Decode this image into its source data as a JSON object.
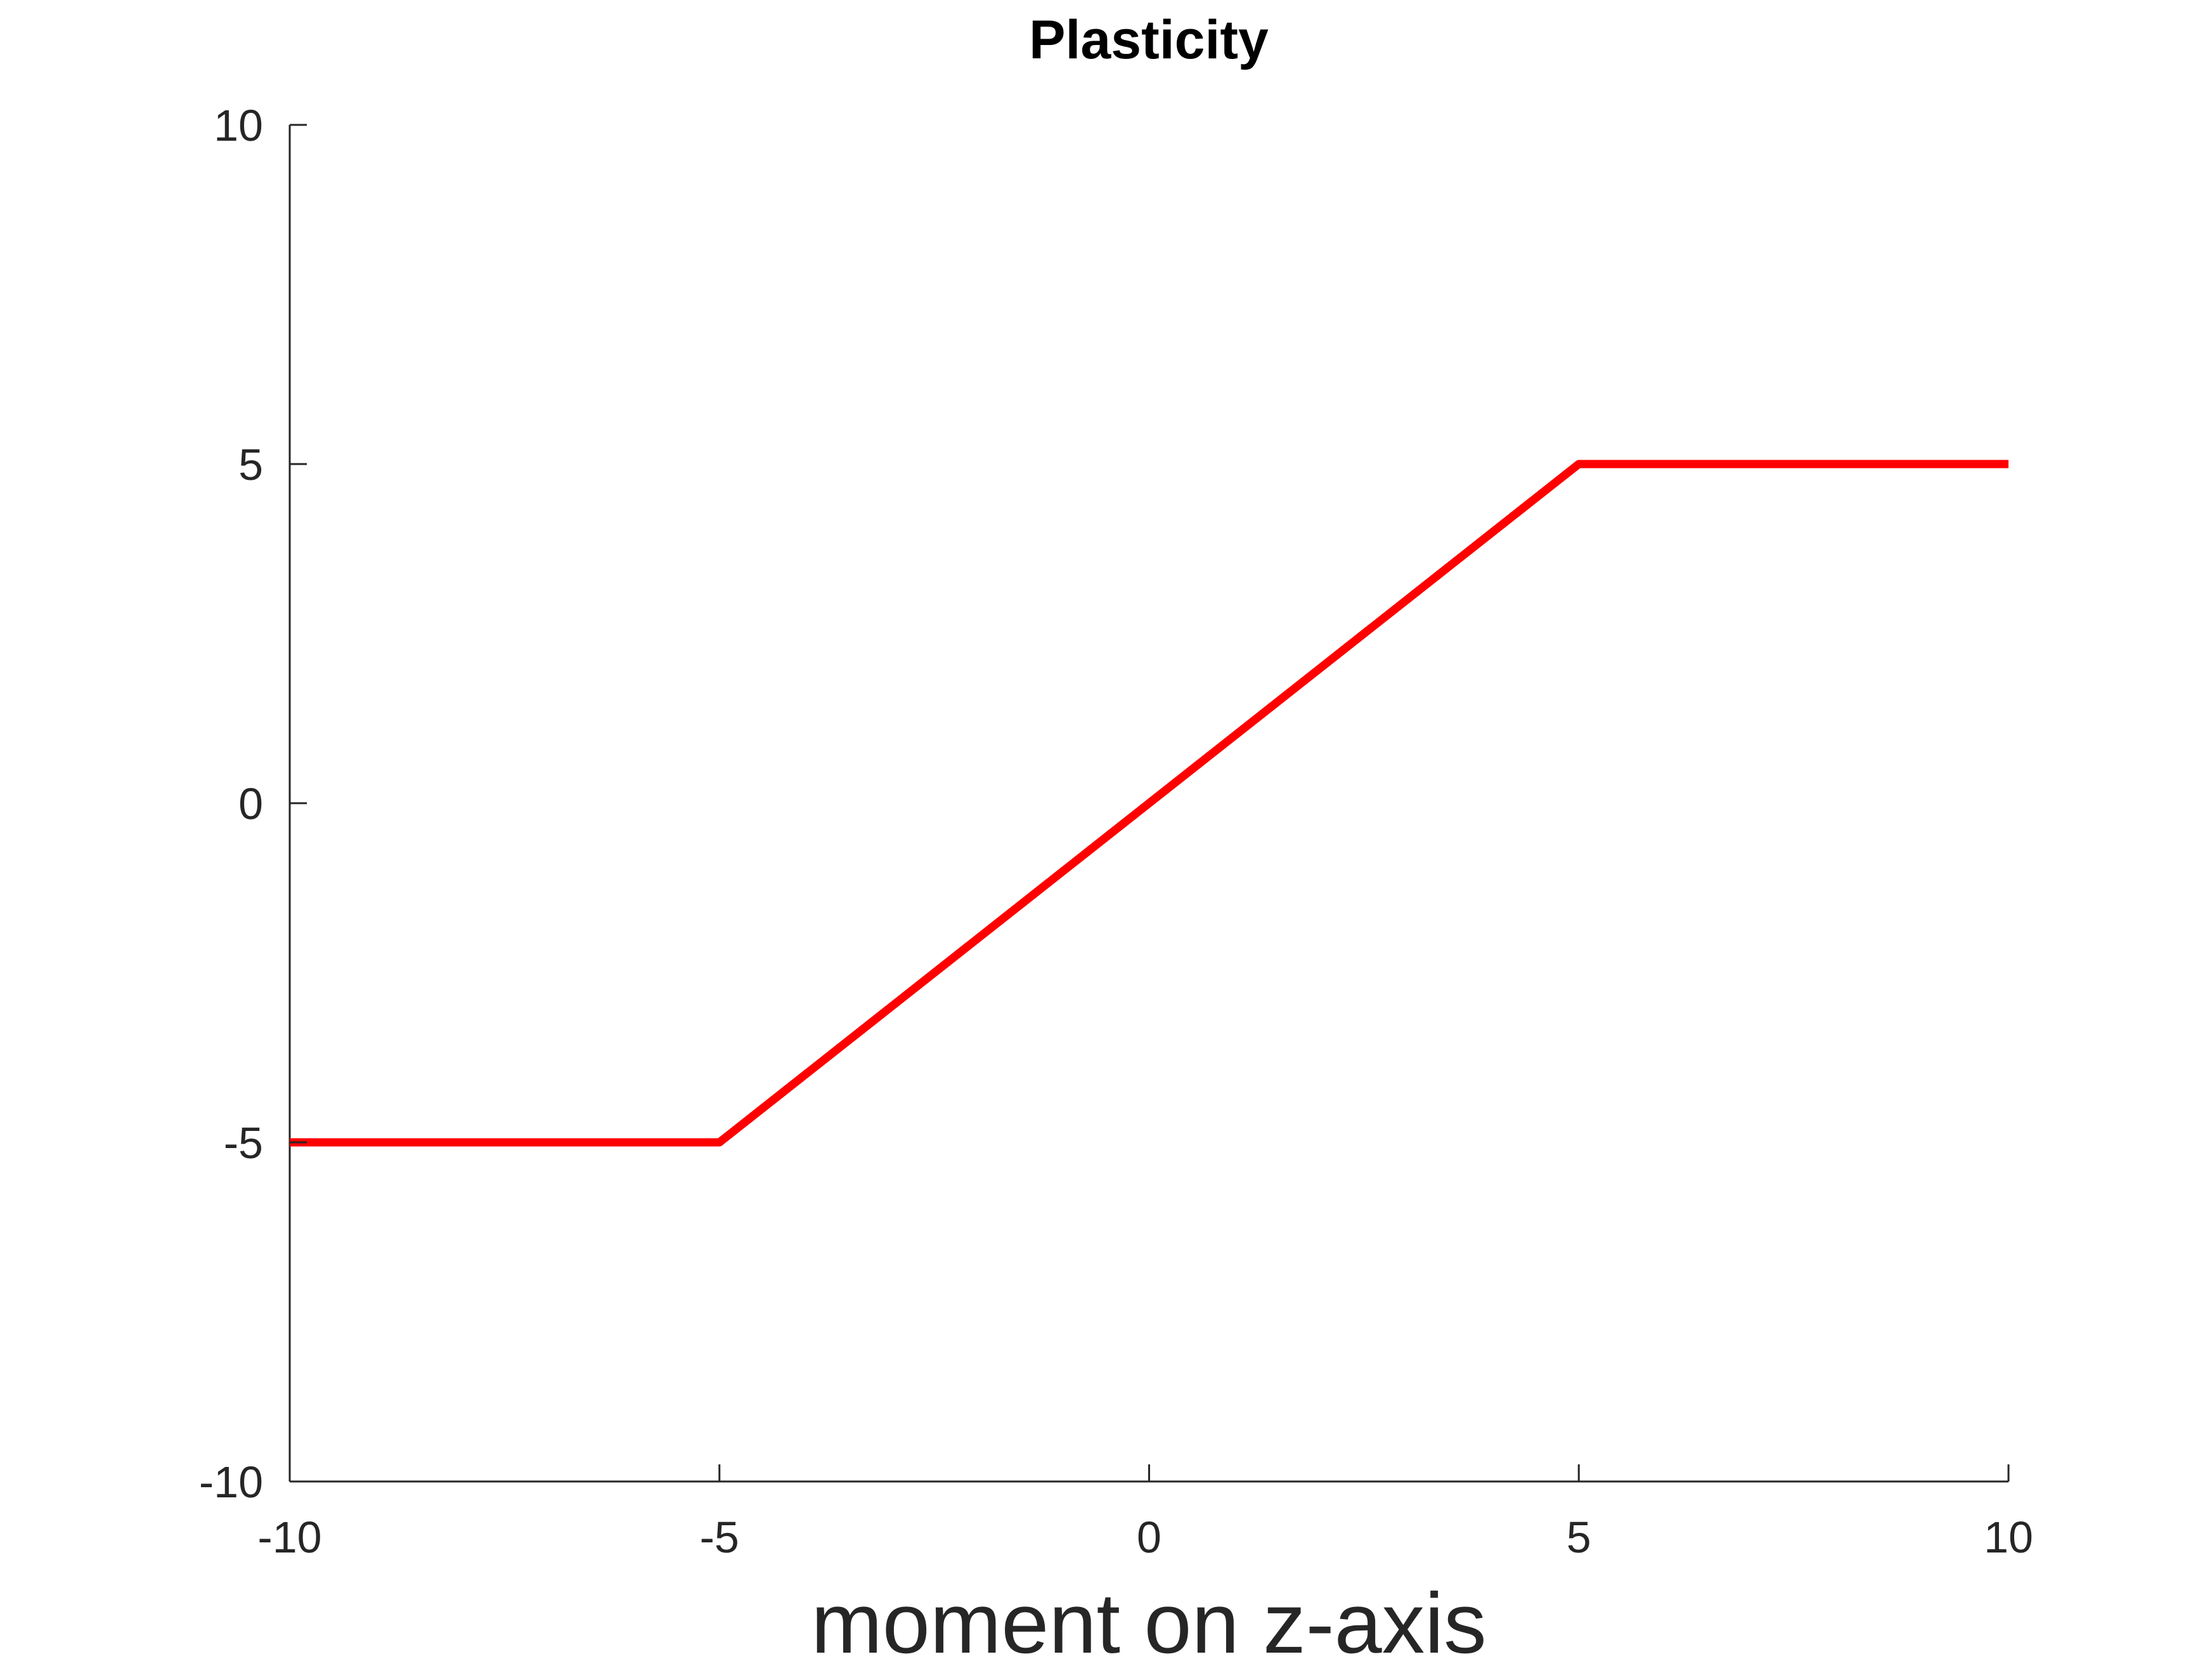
{
  "chart_data": {
    "type": "line",
    "title": "Plasticity",
    "xlabel": "moment on z-axis",
    "ylabel": "",
    "xlim": [
      -10,
      10
    ],
    "ylim": [
      -10,
      10
    ],
    "xticks": [
      -10,
      -5,
      0,
      5,
      10
    ],
    "yticks": [
      -10,
      -5,
      0,
      5,
      10
    ],
    "xtick_labels": [
      "-10",
      "-5",
      "0",
      "5",
      "10"
    ],
    "ytick_labels": [
      "-10",
      "-5",
      "0",
      "5",
      "10"
    ],
    "grid": false,
    "series": [
      {
        "color": "#ff0000",
        "x": [
          -10,
          -5,
          5,
          10
        ],
        "y": [
          -5,
          -5,
          5,
          5
        ]
      }
    ]
  }
}
